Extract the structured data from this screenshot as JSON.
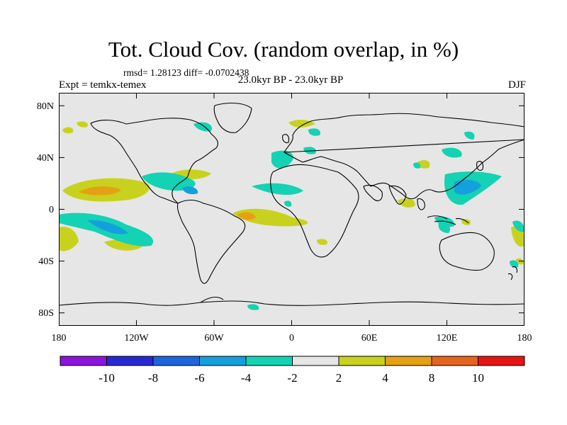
{
  "title": "Tot. Cloud Cov. (random overlap, in %)",
  "stats_line": "rmsd= 1.28123  diff= -0.0702438",
  "period_line": "23.0kyr BP - 23.0kyr BP",
  "experiment_label": "Expt = temkx-temex",
  "season_label": "DJF",
  "y_ticks": [
    "80N",
    "40N",
    "0",
    "40S",
    "80S"
  ],
  "x_ticks": [
    "180",
    "120W",
    "60W",
    "0",
    "60E",
    "120E",
    "180"
  ],
  "colorbar": {
    "labels": [
      "-10",
      "-8",
      "-6",
      "-4",
      "-2",
      "2",
      "4",
      "8",
      "10"
    ],
    "colors": [
      "#8c14dc",
      "#2828d2",
      "#1e64dc",
      "#14a0dc",
      "#14d2b4",
      "#e6e6e6",
      "#c8d21e",
      "#e6a014",
      "#e6641e",
      "#e61414"
    ]
  },
  "palette": {
    "ocean_land_bg": "#e6e6e6",
    "coast": "#000000"
  }
}
